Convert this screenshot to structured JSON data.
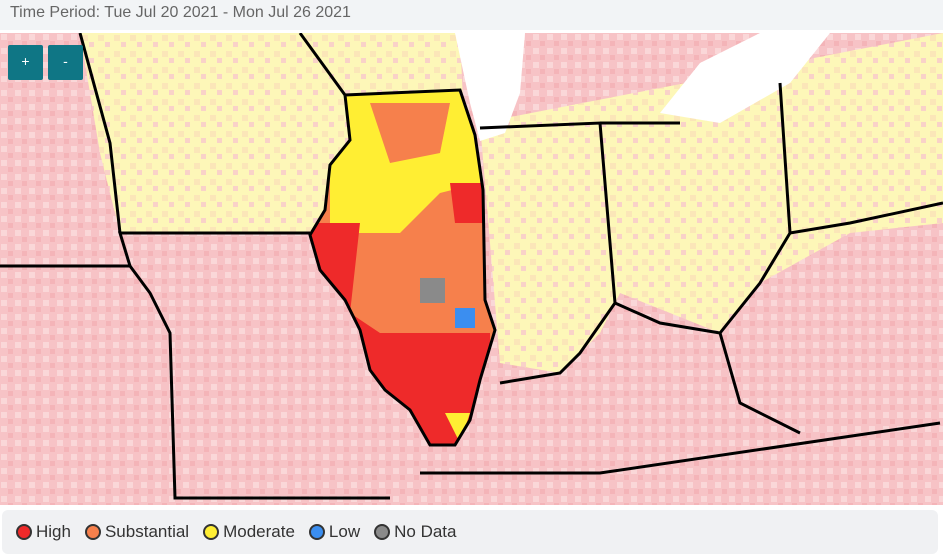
{
  "header": {
    "title": "Time Period: Tue Jul 20 2021 - Mon Jul 26 2021"
  },
  "zoom": {
    "in": "+",
    "out": "-"
  },
  "legend": [
    {
      "label": "High",
      "color": "#ee2a2a"
    },
    {
      "label": "Substantial",
      "color": "#f6804c"
    },
    {
      "label": "Moderate",
      "color": "#ffee33"
    },
    {
      "label": "Low",
      "color": "#3b8ef0"
    },
    {
      "label": "No Data",
      "color": "#8a8a8a"
    }
  ]
}
